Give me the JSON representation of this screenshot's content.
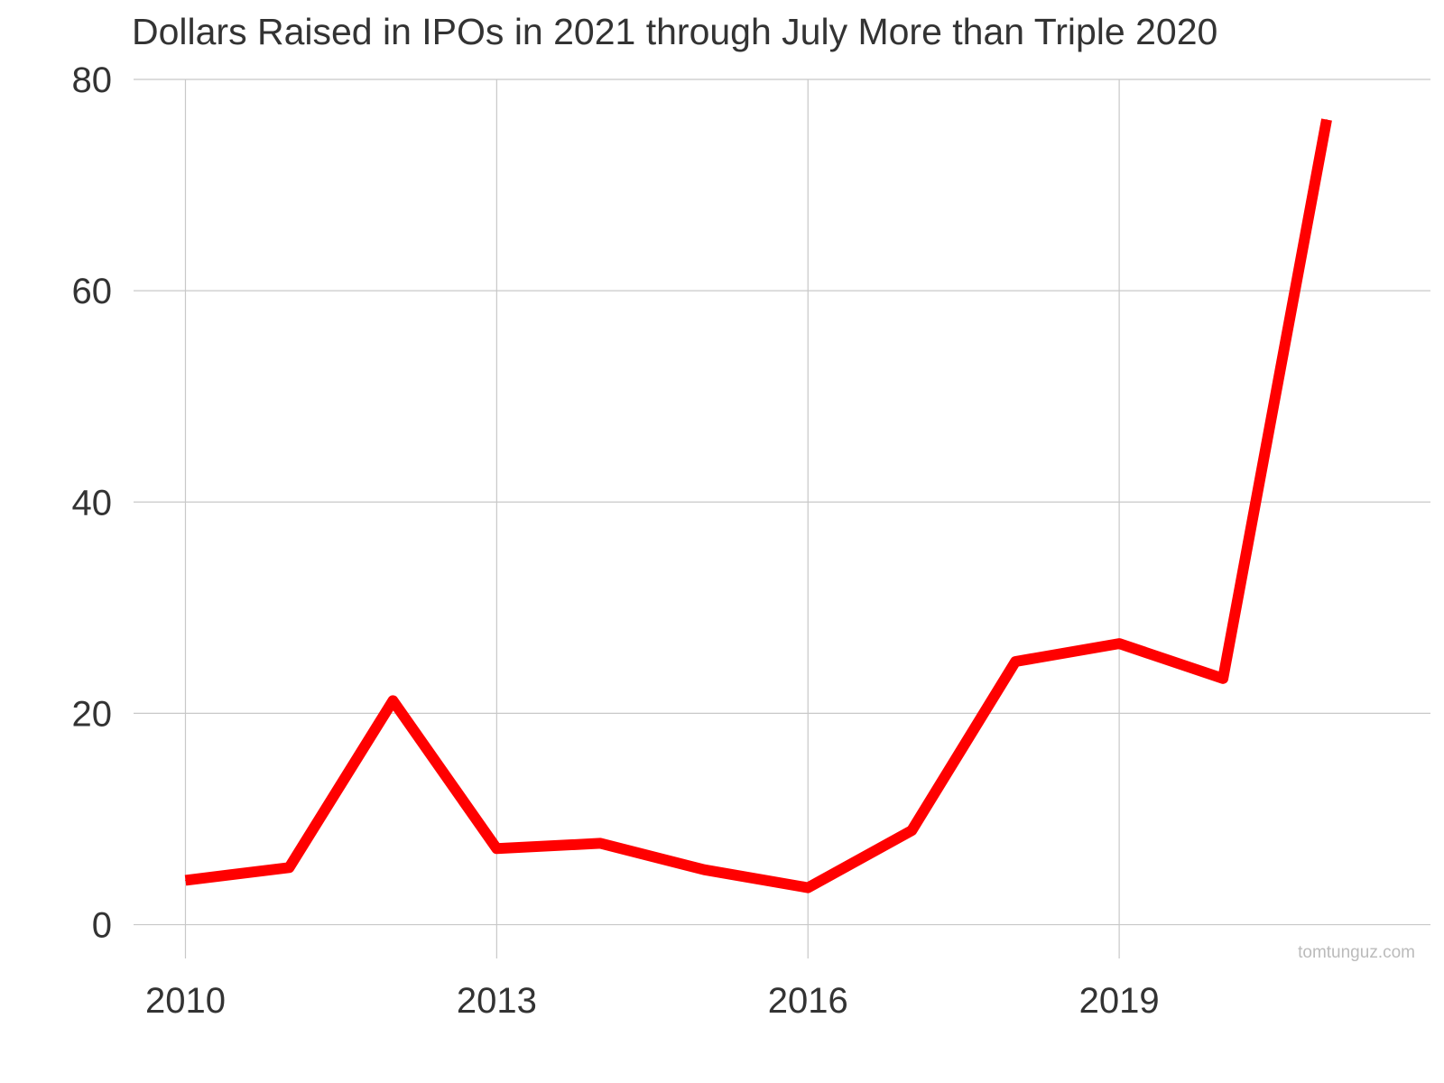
{
  "chart_data": {
    "type": "line",
    "title": "Dollars Raised in IPOs in 2021 through July More than Triple 2020",
    "xlabel": "",
    "ylabel": "",
    "x": [
      2010,
      2011,
      2012,
      2013,
      2014,
      2015,
      2016,
      2017,
      2018,
      2019,
      2020,
      2021
    ],
    "series": [
      {
        "values": [
          4.2,
          5.4,
          21.2,
          7.2,
          7.7,
          5.2,
          3.5,
          8.9,
          24.9,
          26.6,
          23.3,
          76.2
        ]
      }
    ],
    "xlim": [
      2009.5,
      2022.0
    ],
    "ylim": [
      -3.2,
      80
    ],
    "yticks": [
      0,
      20,
      40,
      60,
      80
    ],
    "xticks": [
      2010,
      2013,
      2016,
      2019
    ],
    "grid": true,
    "line_color": "#ff0000",
    "watermark": "tomtunguz.com"
  }
}
